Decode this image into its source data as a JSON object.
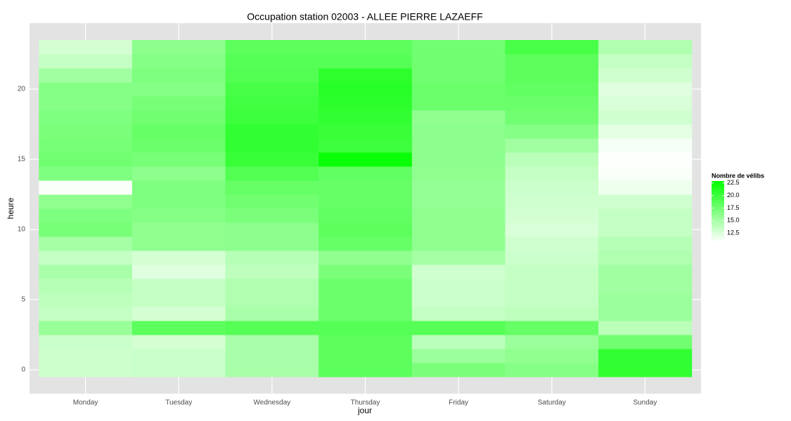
{
  "chart_data": {
    "type": "heatmap",
    "title": "Occupation station 02003 - ALLEE PIERRE LAZAEFF",
    "x_label": "jour",
    "y_label": "heure",
    "categories": [
      "Monday",
      "Tuesday",
      "Wednesday",
      "Thursday",
      "Friday",
      "Saturday",
      "Sunday"
    ],
    "y": [
      0,
      1,
      2,
      3,
      4,
      5,
      6,
      7,
      8,
      9,
      10,
      11,
      12,
      13,
      14,
      15,
      16,
      17,
      18,
      19,
      20,
      21,
      22,
      23
    ],
    "values": [
      [
        13.1,
        13.1,
        13.3,
        15.6,
        13.5,
        13.8,
        14.2,
        14.8,
        13.5,
        15,
        17.2,
        16.8,
        16,
        11,
        16.8,
        17.5,
        17.2,
        17,
        16.8,
        16.5,
        16.5,
        15.2,
        13.5,
        12.8
      ],
      [
        13.3,
        13.3,
        12.8,
        18.5,
        12.8,
        13.5,
        13.5,
        12.2,
        12.8,
        16,
        16,
        16.5,
        16.8,
        16.8,
        16.2,
        17.2,
        17.8,
        18,
        17.5,
        17.2,
        16.5,
        16.8,
        16.5,
        16.2
      ],
      [
        14.8,
        14.8,
        14.8,
        18.8,
        14.8,
        14.5,
        14.5,
        13.8,
        14.2,
        16.2,
        16.2,
        17,
        17.5,
        18,
        19,
        20.2,
        20.5,
        20.5,
        20,
        19.8,
        19.5,
        19,
        18.8,
        18.5
      ],
      [
        18.5,
        18.5,
        18.5,
        18.8,
        17.8,
        17.8,
        17.8,
        17,
        16,
        18,
        18.5,
        18.2,
        18,
        18,
        18.2,
        22.5,
        20,
        20.2,
        20.5,
        20.8,
        21,
        20.8,
        18.8,
        18.5
      ],
      [
        17,
        15.5,
        14,
        18.8,
        13.5,
        13.2,
        13.2,
        13,
        15,
        16,
        16,
        16,
        15.8,
        15.8,
        16,
        16.2,
        16.2,
        16.2,
        16,
        17.8,
        17.8,
        17.5,
        17.5,
        17.5
      ],
      [
        16.5,
        16,
        15.5,
        18,
        13.8,
        13.5,
        13.5,
        13.5,
        13.2,
        13,
        12.5,
        12.8,
        13,
        13.2,
        13.5,
        14,
        15.2,
        16.5,
        17.5,
        17.8,
        18.2,
        18.5,
        18.5,
        19.5
      ],
      [
        20.5,
        20.5,
        17.5,
        14,
        15.5,
        15.5,
        15.2,
        15.2,
        14.5,
        14.2,
        13.5,
        13.5,
        13,
        11.5,
        11,
        10.8,
        11.2,
        12,
        13,
        12.5,
        12.2,
        13,
        13.5,
        14.5
      ]
    ],
    "ylim": [
      -1.7,
      24.7
    ],
    "yticks": [
      0,
      5,
      10,
      15,
      20
    ],
    "grid": true,
    "legend": {
      "title": "Nombre de vélibs",
      "ticks": [
        12.5,
        {
          "value": 15,
          "label": "15.0"
        },
        17.5,
        {
          "value": 20,
          "label": "20.0"
        },
        22.5
      ]
    },
    "color_low": "#ffffff",
    "color_high": "#00ff00",
    "color_limits": [
      10.7,
      22.9
    ],
    "panel_color": "#e3e3e3"
  }
}
